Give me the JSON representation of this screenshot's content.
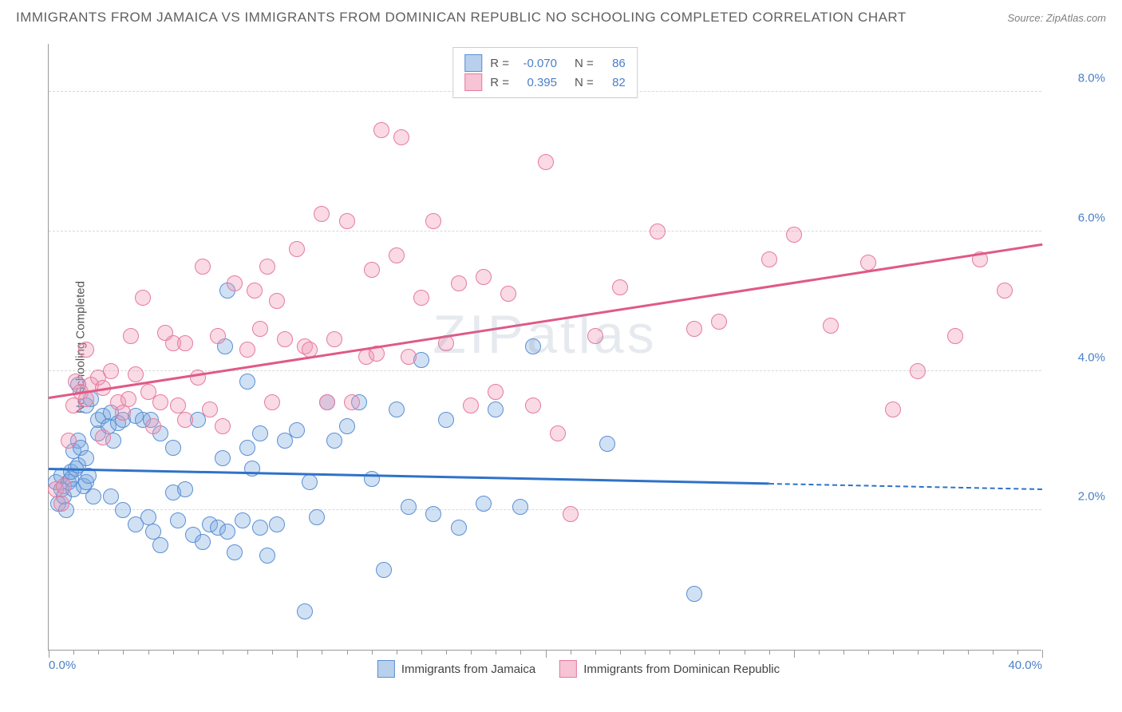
{
  "header": {
    "title": "IMMIGRANTS FROM JAMAICA VS IMMIGRANTS FROM DOMINICAN REPUBLIC NO SCHOOLING COMPLETED CORRELATION CHART",
    "source": "Source: ZipAtlas.com"
  },
  "chart": {
    "type": "scatter",
    "xlim": [
      0,
      40
    ],
    "ylim": [
      0,
      8.7
    ],
    "ylabel": "No Schooling Completed",
    "yticks": [
      {
        "v": 2.0,
        "label": "2.0%"
      },
      {
        "v": 4.0,
        "label": "4.0%"
      },
      {
        "v": 6.0,
        "label": "6.0%"
      },
      {
        "v": 8.0,
        "label": "8.0%"
      }
    ],
    "xticks_major": [
      0,
      10,
      20,
      30,
      40
    ],
    "xtick_labels": [
      {
        "v": 0,
        "label": "0.0%"
      },
      {
        "v": 40,
        "label": "40.0%"
      }
    ],
    "xticks_minor_step": 1,
    "background_color": "#ffffff",
    "grid_color": "#d8d8d8",
    "watermark": "ZIPatlas",
    "marker_radius": 10,
    "marker_opacity_fill": 0.35,
    "series": [
      {
        "name": "Immigrants from Jamaica",
        "color_stroke": "#5a8fd4",
        "color_fill": "rgba(122,168,224,0.35)",
        "legend_swatch_fill": "#b8d0ec",
        "legend_swatch_border": "#5a8fd4",
        "R": "-0.070",
        "N": "86",
        "trend": {
          "x1": 0,
          "y1": 2.58,
          "x2": 29,
          "y2": 2.37,
          "x2_dash": 40,
          "y2_dash": 2.29,
          "color": "#2f72c9"
        },
        "points": [
          [
            0.3,
            2.4
          ],
          [
            0.4,
            2.1
          ],
          [
            0.5,
            2.3
          ],
          [
            0.5,
            2.5
          ],
          [
            0.6,
            2.2
          ],
          [
            0.7,
            2.0
          ],
          [
            0.8,
            2.4
          ],
          [
            0.9,
            2.45
          ],
          [
            0.9,
            2.55
          ],
          [
            1.0,
            2.3
          ],
          [
            1.0,
            2.85
          ],
          [
            1.1,
            2.6
          ],
          [
            1.2,
            2.65
          ],
          [
            1.2,
            3.0
          ],
          [
            1.3,
            2.9
          ],
          [
            1.4,
            2.35
          ],
          [
            1.5,
            2.4
          ],
          [
            1.5,
            2.75
          ],
          [
            1.6,
            2.5
          ],
          [
            1.8,
            2.2
          ],
          [
            1.2,
            3.8
          ],
          [
            1.5,
            3.5
          ],
          [
            1.7,
            3.6
          ],
          [
            2.0,
            3.1
          ],
          [
            2.0,
            3.3
          ],
          [
            2.2,
            3.35
          ],
          [
            2.4,
            3.2
          ],
          [
            2.5,
            3.4
          ],
          [
            2.6,
            3.0
          ],
          [
            2.8,
            3.25
          ],
          [
            3.0,
            3.3
          ],
          [
            3.5,
            3.35
          ],
          [
            3.8,
            3.3
          ],
          [
            4.1,
            3.3
          ],
          [
            4.5,
            3.1
          ],
          [
            5.0,
            2.9
          ],
          [
            2.5,
            2.2
          ],
          [
            3.0,
            2.0
          ],
          [
            3.5,
            1.8
          ],
          [
            4.0,
            1.9
          ],
          [
            4.2,
            1.7
          ],
          [
            4.5,
            1.5
          ],
          [
            5.0,
            2.25
          ],
          [
            5.2,
            1.85
          ],
          [
            5.5,
            2.3
          ],
          [
            5.8,
            1.65
          ],
          [
            6.0,
            3.3
          ],
          [
            6.2,
            1.55
          ],
          [
            6.5,
            1.8
          ],
          [
            6.8,
            1.75
          ],
          [
            7.0,
            2.75
          ],
          [
            7.2,
            1.7
          ],
          [
            7.5,
            1.4
          ],
          [
            7.8,
            1.85
          ],
          [
            8.0,
            2.9
          ],
          [
            8.2,
            2.6
          ],
          [
            8.5,
            1.75
          ],
          [
            8.8,
            1.35
          ],
          [
            9.2,
            1.8
          ],
          [
            9.5,
            3.0
          ],
          [
            10.0,
            3.15
          ],
          [
            10.3,
            0.55
          ],
          [
            10.5,
            2.4
          ],
          [
            10.8,
            1.9
          ],
          [
            11.2,
            3.55
          ],
          [
            11.5,
            3.0
          ],
          [
            12.0,
            3.2
          ],
          [
            12.5,
            3.55
          ],
          [
            13.0,
            2.45
          ],
          [
            13.5,
            1.15
          ],
          [
            14.0,
            3.45
          ],
          [
            14.5,
            2.05
          ],
          [
            15.0,
            4.15
          ],
          [
            15.5,
            1.95
          ],
          [
            16.0,
            3.3
          ],
          [
            16.5,
            1.75
          ],
          [
            17.5,
            2.1
          ],
          [
            18.0,
            3.45
          ],
          [
            19.0,
            2.05
          ],
          [
            19.5,
            4.35
          ],
          [
            7.1,
            4.35
          ],
          [
            7.2,
            5.15
          ],
          [
            8.0,
            3.85
          ],
          [
            26.0,
            0.8
          ],
          [
            22.5,
            2.95
          ],
          [
            8.5,
            3.1
          ]
        ]
      },
      {
        "name": "Immigrants from Dominican Republic",
        "color_stroke": "#e67b9d",
        "color_fill": "rgba(238,150,180,0.35)",
        "legend_swatch_fill": "#f6c4d4",
        "legend_swatch_border": "#e67b9d",
        "R": "0.395",
        "N": "82",
        "trend": {
          "x1": 0,
          "y1": 3.6,
          "x2": 40,
          "y2": 5.8,
          "color": "#e05987"
        },
        "points": [
          [
            0.3,
            2.3
          ],
          [
            0.5,
            2.1
          ],
          [
            0.6,
            2.35
          ],
          [
            0.8,
            3.0
          ],
          [
            1.0,
            3.5
          ],
          [
            1.1,
            3.85
          ],
          [
            1.3,
            3.7
          ],
          [
            1.5,
            3.6
          ],
          [
            1.7,
            3.8
          ],
          [
            2.0,
            3.9
          ],
          [
            1.5,
            4.3
          ],
          [
            2.2,
            3.75
          ],
          [
            2.5,
            4.0
          ],
          [
            2.8,
            3.55
          ],
          [
            3.0,
            3.4
          ],
          [
            3.2,
            3.6
          ],
          [
            3.5,
            3.95
          ],
          [
            4.0,
            3.7
          ],
          [
            4.2,
            3.2
          ],
          [
            4.5,
            3.55
          ],
          [
            5.0,
            4.4
          ],
          [
            5.2,
            3.5
          ],
          [
            5.5,
            3.3
          ],
          [
            6.0,
            3.9
          ],
          [
            6.2,
            5.5
          ],
          [
            6.5,
            3.45
          ],
          [
            7.0,
            3.2
          ],
          [
            7.5,
            5.25
          ],
          [
            8.0,
            4.3
          ],
          [
            3.8,
            5.05
          ],
          [
            8.5,
            4.6
          ],
          [
            8.8,
            5.5
          ],
          [
            9.0,
            3.55
          ],
          [
            9.2,
            5.0
          ],
          [
            9.5,
            4.45
          ],
          [
            10.0,
            5.75
          ],
          [
            10.3,
            4.35
          ],
          [
            10.5,
            4.3
          ],
          [
            11.0,
            6.25
          ],
          [
            11.2,
            3.55
          ],
          [
            11.5,
            4.45
          ],
          [
            12.0,
            6.15
          ],
          [
            12.2,
            3.55
          ],
          [
            12.8,
            4.2
          ],
          [
            13.0,
            5.45
          ],
          [
            13.2,
            4.25
          ],
          [
            13.4,
            7.45
          ],
          [
            14.0,
            5.65
          ],
          [
            14.2,
            7.35
          ],
          [
            14.5,
            4.2
          ],
          [
            15.0,
            5.05
          ],
          [
            15.5,
            6.15
          ],
          [
            16.0,
            4.4
          ],
          [
            16.5,
            5.25
          ],
          [
            17.0,
            3.5
          ],
          [
            17.5,
            5.35
          ],
          [
            18.0,
            3.7
          ],
          [
            18.5,
            5.1
          ],
          [
            19.5,
            3.5
          ],
          [
            20.0,
            7.0
          ],
          [
            20.5,
            3.1
          ],
          [
            21.0,
            1.95
          ],
          [
            22.0,
            4.5
          ],
          [
            23.0,
            5.2
          ],
          [
            24.5,
            6.0
          ],
          [
            26.0,
            4.6
          ],
          [
            27.0,
            4.7
          ],
          [
            29.0,
            5.6
          ],
          [
            30.0,
            5.95
          ],
          [
            31.5,
            4.65
          ],
          [
            33.0,
            5.55
          ],
          [
            34.0,
            3.45
          ],
          [
            35.0,
            4.0
          ],
          [
            36.5,
            4.5
          ],
          [
            37.5,
            5.6
          ],
          [
            38.5,
            5.15
          ],
          [
            3.3,
            4.5
          ],
          [
            4.7,
            4.55
          ],
          [
            5.5,
            4.4
          ],
          [
            6.8,
            4.5
          ],
          [
            8.3,
            5.15
          ],
          [
            2.2,
            3.05
          ]
        ]
      }
    ]
  }
}
